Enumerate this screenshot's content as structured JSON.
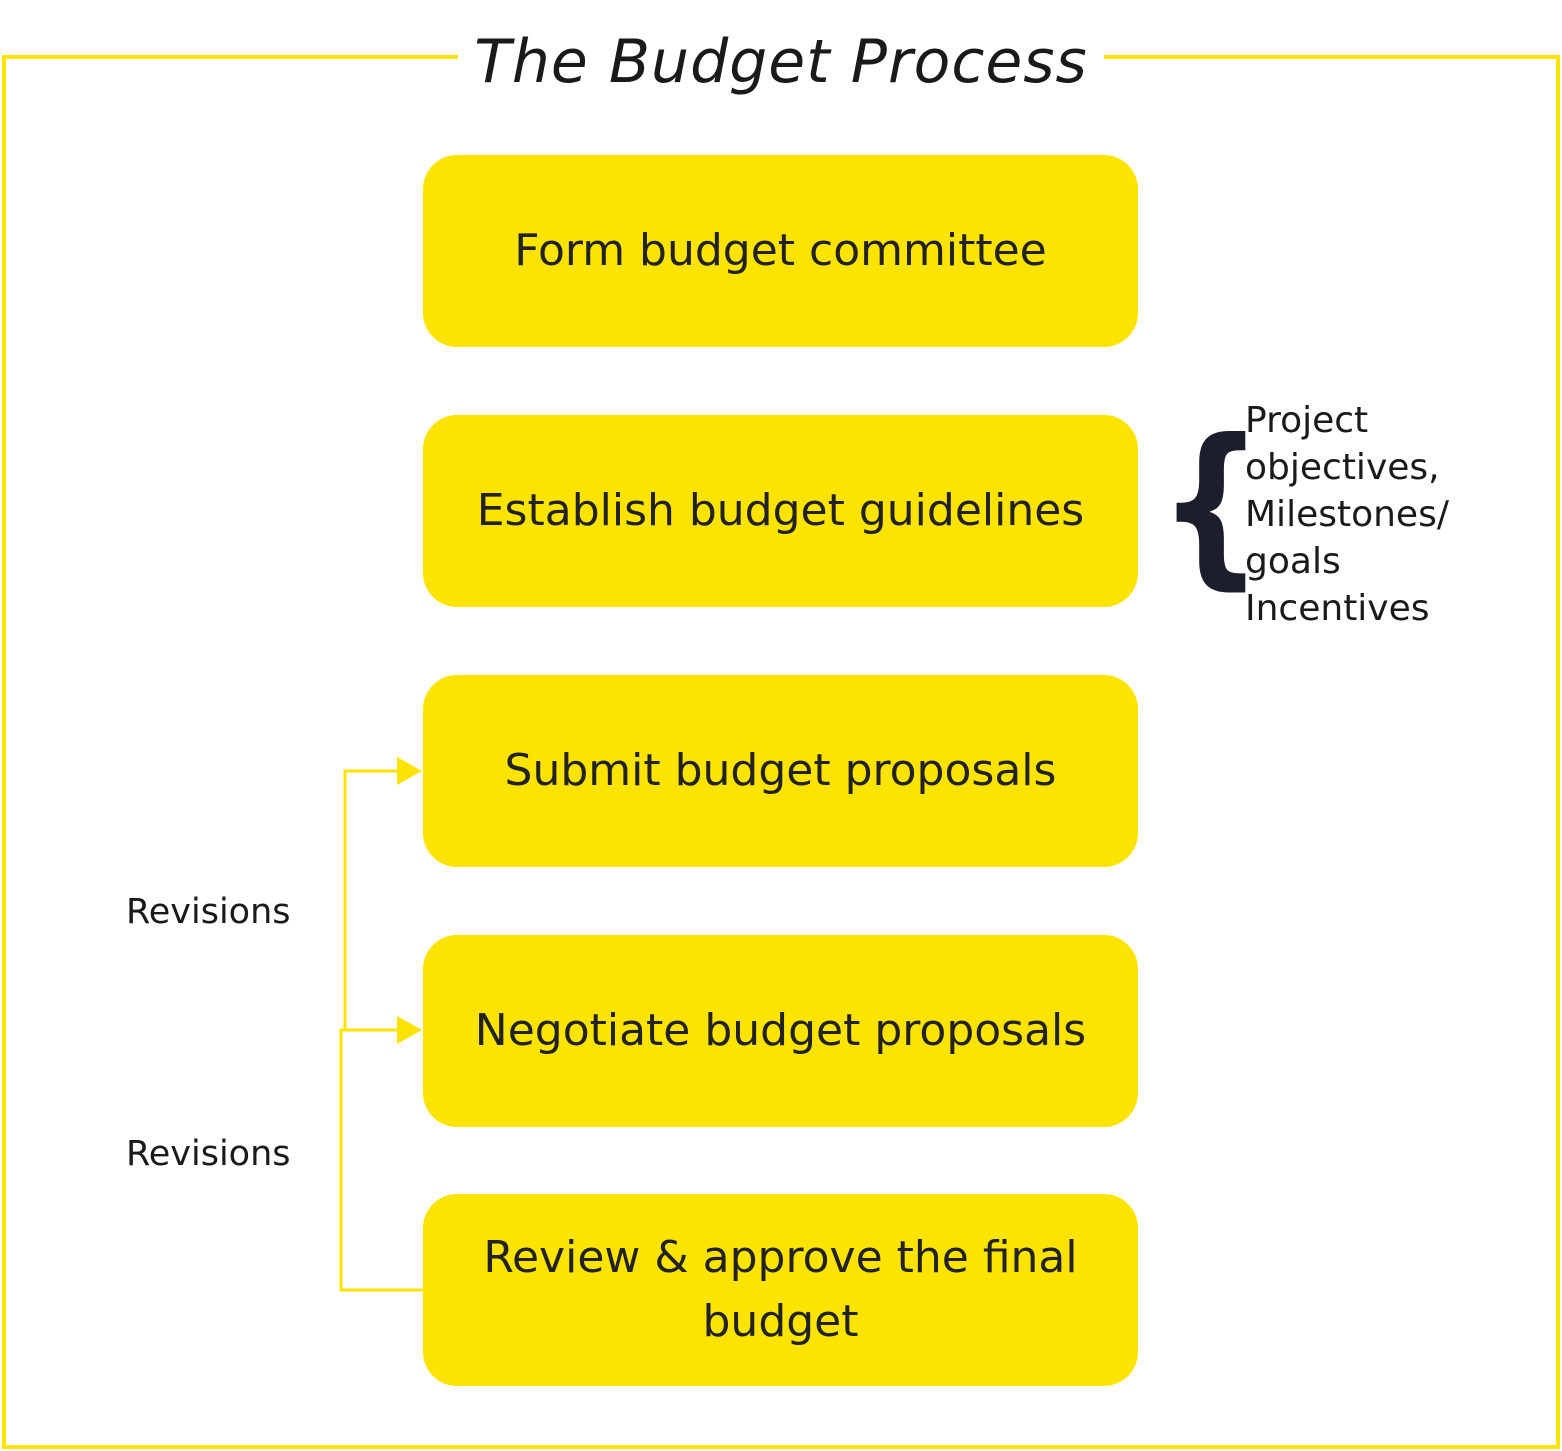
{
  "title": "The Budget Process",
  "colors": {
    "frame": "#fde400",
    "step_fill": "#fde400",
    "connector": "#fde400",
    "text": "#222222"
  },
  "steps": [
    {
      "label": "Form budget committee"
    },
    {
      "label": "Establish budget guidelines"
    },
    {
      "label": "Submit budget proposals"
    },
    {
      "label": "Negotiate budget proposals"
    },
    {
      "label": "Review & approve the final budget"
    }
  ],
  "guidelines_notes": {
    "brace": "{",
    "lines": [
      "Project",
      "objectives,",
      "Milestones/",
      "goals",
      "Incentives"
    ]
  },
  "revisions": [
    {
      "label": "Revisions"
    },
    {
      "label": "Revisions"
    }
  ]
}
